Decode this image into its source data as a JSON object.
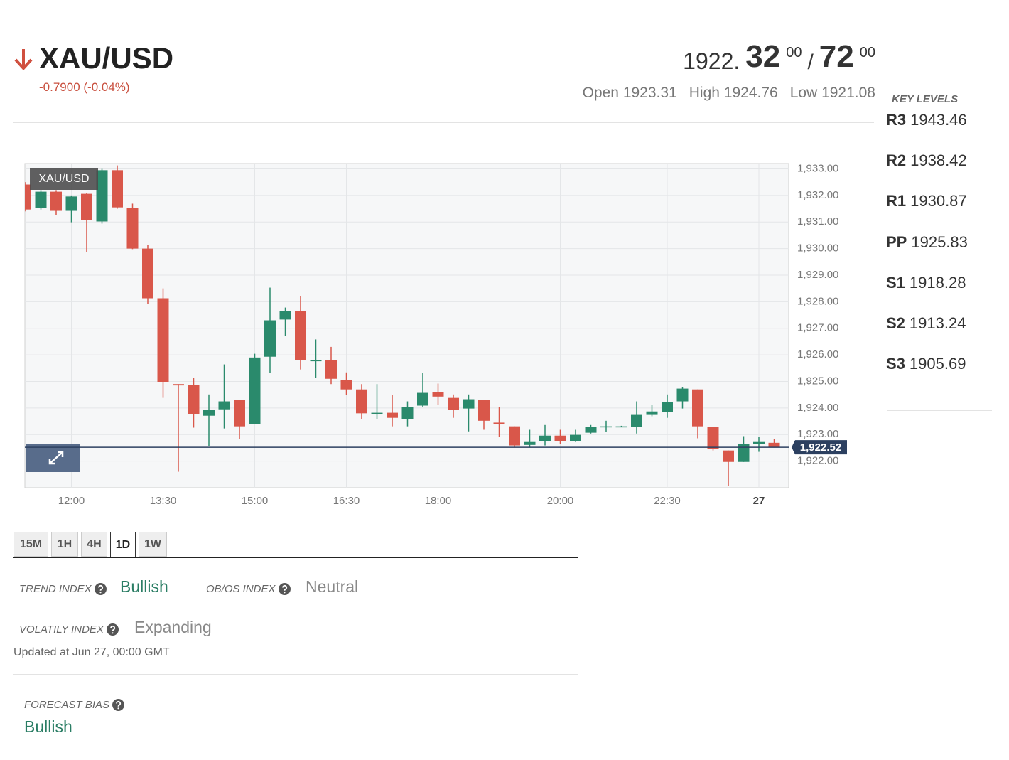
{
  "header": {
    "symbol": "XAU/USD",
    "change": "-0.7900 (-0.04%)",
    "bid": {
      "main": "1922.",
      "big": "32",
      "small": "00"
    },
    "separator": "/",
    "ask": {
      "big": "72",
      "small": "00"
    },
    "stats": [
      {
        "label": "Open",
        "value": "1923.31"
      },
      {
        "label": "High",
        "value": "1924.76"
      },
      {
        "label": "Low",
        "value": "1921.08"
      }
    ]
  },
  "key_levels": {
    "title": "KEY LEVELS",
    "levels": [
      {
        "name": "R3",
        "value": "1943.46"
      },
      {
        "name": "R2",
        "value": "1938.42"
      },
      {
        "name": "R1",
        "value": "1930.87"
      },
      {
        "name": "PP",
        "value": "1925.83"
      },
      {
        "name": "S1",
        "value": "1918.28"
      },
      {
        "name": "S2",
        "value": "1913.24"
      },
      {
        "name": "S3",
        "value": "1905.69"
      }
    ]
  },
  "chart_data": {
    "type": "candlestick",
    "title": "XAU/USD",
    "categories": [
      null,
      null,
      null,
      "12:00",
      null,
      null,
      null,
      null,
      null,
      "13:30",
      null,
      null,
      null,
      null,
      null,
      "15:00",
      null,
      null,
      null,
      null,
      null,
      "16:30",
      null,
      null,
      null,
      null,
      null,
      "18:00",
      null,
      null,
      null,
      null,
      null,
      null,
      null,
      "20:00",
      null,
      null,
      null,
      null,
      null,
      null,
      "22:30",
      null,
      null,
      null,
      null,
      null,
      "27",
      null
    ],
    "open": [
      1932.41,
      1931.53,
      1932.14,
      1931.42,
      1932.06,
      1931.02,
      1932.95,
      1931.53,
      1930.0,
      1928.13,
      1924.9,
      1924.87,
      1923.71,
      1923.95,
      1924.3,
      1923.39,
      1925.93,
      1927.33,
      1927.65,
      1925.77,
      1925.8,
      1925.05,
      1924.7,
      1923.77,
      1923.82,
      1923.58,
      1924.09,
      1924.6,
      1924.38,
      1923.98,
      1924.3,
      1923.45,
      1923.31,
      1922.61,
      1922.75,
      1922.96,
      1922.75,
      1923.07,
      1923.28,
      1923.3,
      1923.28,
      1923.74,
      1923.85,
      1924.25,
      1924.7,
      1923.28,
      1922.4,
      1921.97,
      1922.64,
      1922.69
    ],
    "high": [
      1932.5,
      1932.2,
      1932.2,
      1932.0,
      1932.1,
      1933.0,
      1933.13,
      1931.69,
      1930.14,
      1928.5,
      1924.9,
      1925.13,
      1924.51,
      1925.64,
      1924.3,
      1926.04,
      1928.53,
      1927.78,
      1928.21,
      1926.58,
      1926.3,
      1925.34,
      1924.9,
      1924.9,
      1924.49,
      1924.25,
      1925.32,
      1924.92,
      1924.51,
      1924.51,
      1924.3,
      1924.03,
      1923.31,
      1923.18,
      1923.36,
      1923.18,
      1923.18,
      1923.36,
      1923.52,
      1923.33,
      1924.25,
      1924.11,
      1924.51,
      1924.78,
      1924.7,
      1923.28,
      1922.4,
      1922.94,
      1922.91,
      1922.83
    ],
    "low": [
      1931.4,
      1931.47,
      1931.26,
      1930.99,
      1929.87,
      1930.94,
      1931.5,
      1929.98,
      1927.91,
      1924.38,
      1921.6,
      1923.26,
      1922.56,
      1923.23,
      1922.83,
      1923.39,
      1925.32,
      1926.71,
      1925.45,
      1925.13,
      1924.9,
      1924.49,
      1923.58,
      1923.58,
      1923.31,
      1923.31,
      1924.03,
      1924.11,
      1923.63,
      1923.12,
      1923.18,
      1922.91,
      1922.51,
      1922.51,
      1922.59,
      1922.64,
      1922.72,
      1923.04,
      1923.1,
      1923.28,
      1923.04,
      1923.69,
      1923.63,
      1923.98,
      1922.86,
      1922.4,
      1921.06,
      1921.97,
      1922.35,
      1922.51
    ],
    "close": [
      1931.47,
      1932.14,
      1931.42,
      1931.96,
      1931.07,
      1932.95,
      1931.55,
      1930.0,
      1928.13,
      1924.97,
      1924.85,
      1923.77,
      1923.93,
      1924.25,
      1923.31,
      1925.9,
      1927.3,
      1927.65,
      1925.8,
      1925.8,
      1925.1,
      1924.7,
      1923.8,
      1923.82,
      1923.63,
      1924.03,
      1924.57,
      1924.43,
      1923.93,
      1924.33,
      1923.52,
      1923.39,
      1922.59,
      1922.72,
      1922.96,
      1922.75,
      1922.99,
      1923.28,
      1923.31,
      1923.31,
      1923.74,
      1923.87,
      1924.22,
      1924.73,
      1923.31,
      1922.45,
      1921.97,
      1922.64,
      1922.72,
      1922.52
    ],
    "up_color": "#2a8a6c",
    "down_color": "#d9574a",
    "last": {
      "value": 1922.52,
      "label": "1,922.52"
    },
    "last_color": "#2c4060",
    "ylim": [
      1921.0,
      1933.2
    ],
    "yticks": [
      {
        "value": 1922,
        "label": "1,922.00"
      },
      {
        "value": 1923,
        "label": "1,923.00"
      },
      {
        "value": 1924,
        "label": "1,924.00"
      },
      {
        "value": 1925,
        "label": "1,925.00"
      },
      {
        "value": 1926,
        "label": "1,926.00"
      },
      {
        "value": 1927,
        "label": "1,927.00"
      },
      {
        "value": 1928,
        "label": "1,928.00"
      },
      {
        "value": 1929,
        "label": "1,929.00"
      },
      {
        "value": 1930,
        "label": "1,930.00"
      },
      {
        "value": 1931,
        "label": "1,931.00"
      },
      {
        "value": 1932,
        "label": "1,932.00"
      },
      {
        "value": 1933,
        "label": "1,933.00"
      }
    ],
    "grid": true
  },
  "timeframes": {
    "tabs": [
      "15M",
      "1H",
      "4H",
      "1D",
      "1W"
    ],
    "active": "1D"
  },
  "indices": {
    "trend": {
      "label": "TREND INDEX",
      "value": "Bullish"
    },
    "obos": {
      "label": "OB/OS INDEX",
      "value": "Neutral"
    },
    "volatility": {
      "label": "VOLATILY INDEX",
      "value": "Expanding"
    }
  },
  "updated": "Updated at Jun 27, 00:00 GMT",
  "forecast": {
    "label": "FORECAST BIAS",
    "value": "Bullish"
  }
}
